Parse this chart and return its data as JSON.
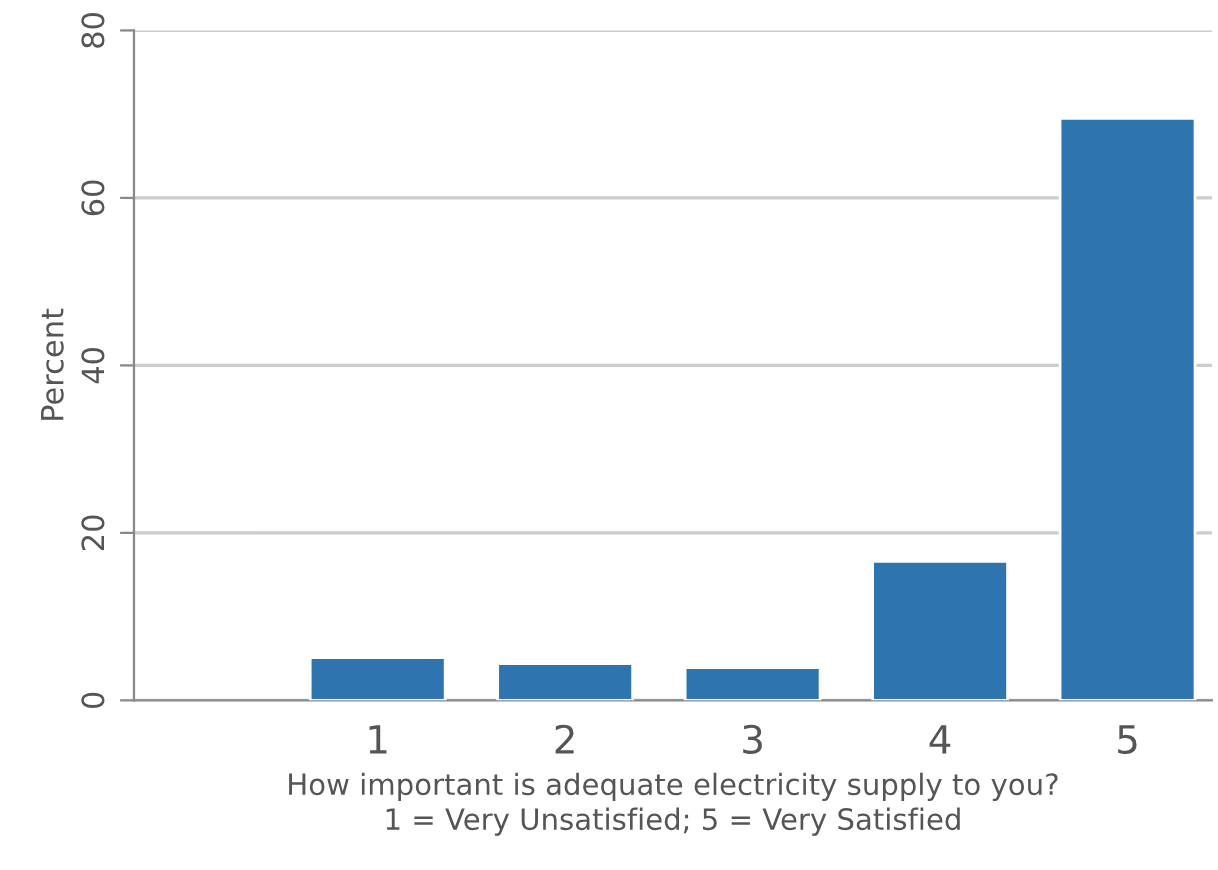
{
  "chart_data": {
    "type": "bar",
    "categories": [
      "1",
      "2",
      "3",
      "4",
      "5"
    ],
    "values": [
      5.1,
      4.4,
      3.9,
      16.6,
      69.5
    ],
    "color": "#2e75b0",
    "ylabel": "Percent",
    "xlabel": "How important is adequate electricity supply to you?\n1 = Very Unsatisfied; 5 = Very Satisfied",
    "ylim": [
      0,
      80
    ],
    "yticks": [
      0,
      20,
      40,
      60,
      80
    ],
    "grid": "y"
  }
}
